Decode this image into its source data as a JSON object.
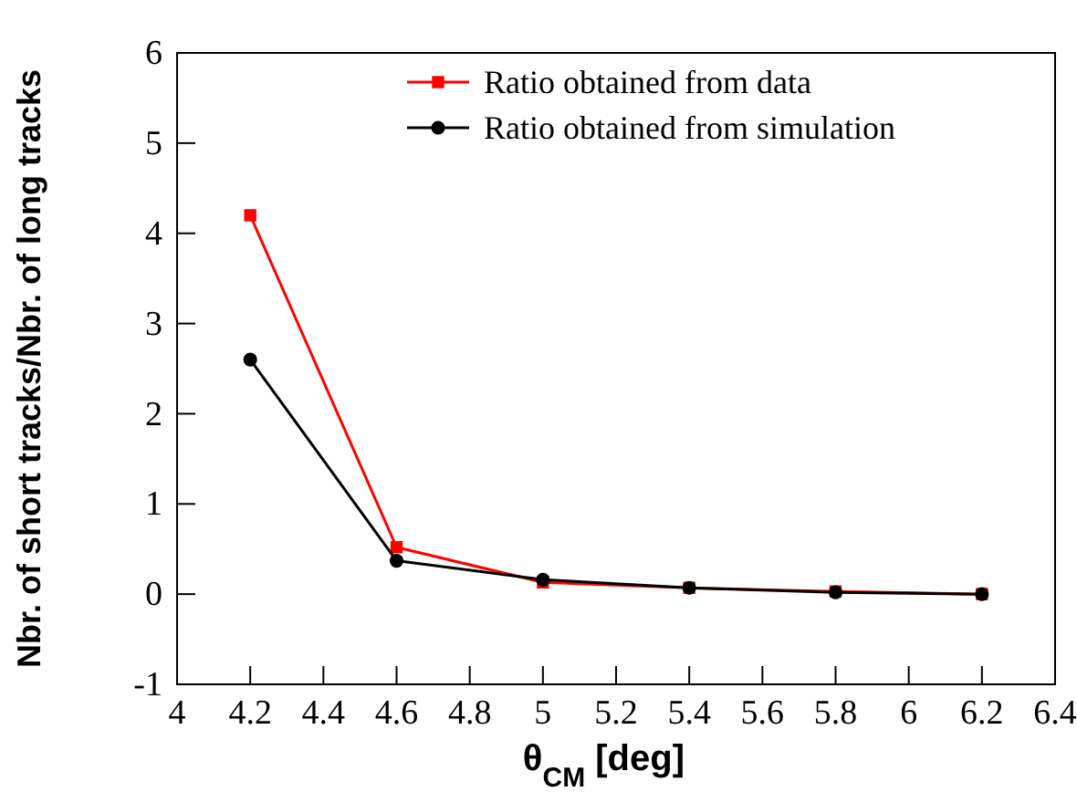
{
  "chart_data": {
    "type": "line",
    "xlabel": "θ$_{CM}$ [deg]",
    "ylabel": "Nbr. of short tracks/Nbr. of long tracks",
    "x": [
      4.2,
      4.6,
      5.0,
      5.4,
      5.8,
      6.2
    ],
    "series": [
      {
        "name": "Ratio obtained from data",
        "color": "#ff0000",
        "marker": "square",
        "values": [
          4.2,
          0.52,
          0.13,
          0.07,
          0.03,
          0.0
        ]
      },
      {
        "name": "Ratio obtained from simulation",
        "color": "#000000",
        "marker": "circle",
        "values": [
          2.6,
          0.37,
          0.16,
          0.07,
          0.02,
          0.0
        ]
      }
    ],
    "xlim": [
      4,
      6.4
    ],
    "xticks": [
      4,
      4.2,
      4.4,
      4.6,
      4.8,
      5,
      5.2,
      5.4,
      5.6,
      5.8,
      6,
      6.2,
      6.4
    ],
    "ylim": [
      -1,
      6
    ],
    "yticks": [
      -1,
      0,
      1,
      2,
      3,
      4,
      5,
      6
    ],
    "grid": false,
    "legend": "top right",
    "line_style": "solid"
  }
}
